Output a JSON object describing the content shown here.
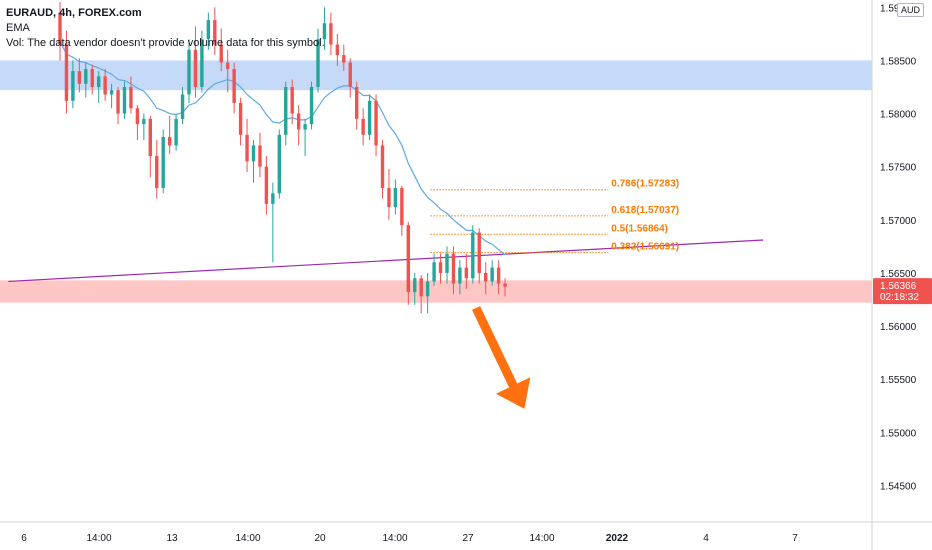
{
  "legend": {
    "title": "EURAUD, 4h, FOREX.com",
    "ema": "EMA",
    "vol": "Vol: The data vendor doesn't provide volume data for this symbol."
  },
  "currency": "AUD",
  "price_tag": {
    "price": "1.56366",
    "countdown": "02:18:32",
    "color": "#ef5350"
  },
  "colors": {
    "up": "#26a69a",
    "down": "#ef5350",
    "ema": "#5ea9e6",
    "fib": "#ff7a00",
    "trendline": "#9c27b0",
    "resistance_zone": "#bbd3f7",
    "support_zone": "#ffbcbc",
    "arrow": "#ff7010"
  },
  "chart_data": {
    "type": "candlestick",
    "y_axis": {
      "min": 1.5425,
      "max": 1.5905,
      "ticks": [
        "1.59000",
        "1.58500",
        "1.58000",
        "1.57500",
        "1.57000",
        "1.56500",
        "1.56000",
        "1.55500",
        "1.55000",
        "1.54500"
      ]
    },
    "x_axis": {
      "ticks": [
        "6",
        "14:00",
        "13",
        "14:00",
        "20",
        "14:00",
        "27",
        "14:00",
        "2022",
        "4",
        "7"
      ]
    },
    "candles": [
      [
        1.5895,
        1.5905,
        1.585,
        1.5865
      ],
      [
        1.5865,
        1.5878,
        1.58,
        1.5812
      ],
      [
        1.5812,
        1.585,
        1.5805,
        1.584
      ],
      [
        1.584,
        1.5852,
        1.582,
        1.5828
      ],
      [
        1.5828,
        1.5848,
        1.5815,
        1.5842
      ],
      [
        1.5842,
        1.5846,
        1.5818,
        1.5825
      ],
      [
        1.5825,
        1.584,
        1.581,
        1.5835
      ],
      [
        1.5835,
        1.5842,
        1.5812,
        1.5818
      ],
      [
        1.5818,
        1.5828,
        1.5805,
        1.5822
      ],
      [
        1.5822,
        1.5825,
        1.579,
        1.58
      ],
      [
        1.58,
        1.583,
        1.5795,
        1.5825
      ],
      [
        1.5825,
        1.5835,
        1.58,
        1.5805
      ],
      [
        1.5805,
        1.5808,
        1.5775,
        1.579
      ],
      [
        1.579,
        1.58,
        1.5775,
        1.5795
      ],
      [
        1.5795,
        1.5798,
        1.574,
        1.576
      ],
      [
        1.576,
        1.5775,
        1.572,
        1.573
      ],
      [
        1.573,
        1.5785,
        1.5725,
        1.5778
      ],
      [
        1.5778,
        1.5798,
        1.5762,
        1.577
      ],
      [
        1.577,
        1.58,
        1.5765,
        1.5795
      ],
      [
        1.5795,
        1.5825,
        1.579,
        1.5818
      ],
      [
        1.5818,
        1.587,
        1.581,
        1.586
      ],
      [
        1.586,
        1.5882,
        1.5815,
        1.5825
      ],
      [
        1.5825,
        1.5878,
        1.582,
        1.587
      ],
      [
        1.587,
        1.5895,
        1.586,
        1.5888
      ],
      [
        1.5888,
        1.59,
        1.5855,
        1.5865
      ],
      [
        1.5865,
        1.588,
        1.584,
        1.5848
      ],
      [
        1.5848,
        1.586,
        1.582,
        1.5842
      ],
      [
        1.5842,
        1.5848,
        1.58,
        1.581
      ],
      [
        1.581,
        1.5815,
        1.577,
        1.578
      ],
      [
        1.578,
        1.5795,
        1.5745,
        1.5755
      ],
      [
        1.5755,
        1.5775,
        1.5735,
        1.577
      ],
      [
        1.577,
        1.5782,
        1.574,
        1.575
      ],
      [
        1.575,
        1.576,
        1.5705,
        1.5715
      ],
      [
        1.5715,
        1.5735,
        1.566,
        1.5725
      ],
      [
        1.5725,
        1.5785,
        1.572,
        1.578
      ],
      [
        1.578,
        1.583,
        1.577,
        1.5825
      ],
      [
        1.5825,
        1.5832,
        1.579,
        1.58
      ],
      [
        1.58,
        1.5808,
        1.577,
        1.5785
      ],
      [
        1.5785,
        1.5795,
        1.576,
        1.579
      ],
      [
        1.579,
        1.583,
        1.5785,
        1.5825
      ],
      [
        1.5825,
        1.588,
        1.582,
        1.587
      ],
      [
        1.587,
        1.59,
        1.586,
        1.5885
      ],
      [
        1.5885,
        1.5895,
        1.5855,
        1.5865
      ],
      [
        1.5865,
        1.5875,
        1.5845,
        1.5855
      ],
      [
        1.5855,
        1.5865,
        1.584,
        1.5848
      ],
      [
        1.5848,
        1.5852,
        1.5815,
        1.5825
      ],
      [
        1.5825,
        1.583,
        1.5785,
        1.5795
      ],
      [
        1.5795,
        1.5805,
        1.577,
        1.578
      ],
      [
        1.578,
        1.5818,
        1.5775,
        1.5812
      ],
      [
        1.5812,
        1.5818,
        1.576,
        1.577
      ],
      [
        1.577,
        1.5775,
        1.572,
        1.573
      ],
      [
        1.573,
        1.5748,
        1.57,
        1.5712
      ],
      [
        1.5712,
        1.5738,
        1.5705,
        1.573
      ],
      [
        1.573,
        1.5732,
        1.5685,
        1.5695
      ],
      [
        1.5695,
        1.5698,
        1.562,
        1.5632
      ],
      [
        1.5632,
        1.565,
        1.562,
        1.5645
      ],
      [
        1.5645,
        1.5648,
        1.5612,
        1.5628
      ],
      [
        1.5628,
        1.565,
        1.5612,
        1.5642
      ],
      [
        1.5642,
        1.5668,
        1.5638,
        1.566
      ],
      [
        1.566,
        1.5668,
        1.564,
        1.565
      ],
      [
        1.565,
        1.5675,
        1.564,
        1.5668
      ],
      [
        1.5668,
        1.5675,
        1.563,
        1.564
      ],
      [
        1.564,
        1.5662,
        1.563,
        1.5655
      ],
      [
        1.5655,
        1.5668,
        1.5635,
        1.5645
      ],
      [
        1.5645,
        1.5695,
        1.564,
        1.5688
      ],
      [
        1.5688,
        1.5692,
        1.564,
        1.565
      ],
      [
        1.565,
        1.566,
        1.563,
        1.5642
      ],
      [
        1.5642,
        1.5662,
        1.5638,
        1.5655
      ],
      [
        1.5655,
        1.5662,
        1.563,
        1.564
      ],
      [
        1.564,
        1.5645,
        1.5628,
        1.5637
      ]
    ],
    "ema": [
      1.5868,
      1.5856,
      1.5853,
      1.5849,
      1.5848,
      1.5845,
      1.5843,
      1.584,
      1.5837,
      1.5832,
      1.5831,
      1.5828,
      1.5824,
      1.5821,
      1.5814,
      1.5805,
      1.5803,
      1.58,
      1.5799,
      1.5801,
      1.5808,
      1.581,
      1.5816,
      1.5823,
      1.5828,
      1.583,
      1.5832,
      1.583,
      1.5825,
      1.5818,
      1.5813,
      1.5808,
      1.5799,
      1.5792,
      1.5791,
      1.5795,
      1.5796,
      1.5794,
      1.5794,
      1.5797,
      1.5806,
      1.5815,
      1.582,
      1.5824,
      1.5826,
      1.5826,
      1.5822,
      1.5817,
      1.5817,
      1.5812,
      1.5801,
      1.5789,
      1.5781,
      1.577,
      1.5753,
      1.5741,
      1.5729,
      1.5721,
      1.5716,
      1.571,
      1.5706,
      1.57,
      1.5695,
      1.569,
      1.569,
      1.5685,
      1.568,
      1.5677,
      1.5672,
      1.5667
    ],
    "zones": [
      {
        "name": "resistance-zone",
        "top": 1.585,
        "bottom": 1.5822
      },
      {
        "name": "support-zone",
        "top": 1.5643,
        "bottom": 1.5622
      }
    ],
    "trendline": {
      "from_index": -8,
      "from_price": 1.5642,
      "to_index": 109,
      "to_price": 1.5681
    },
    "fibonacci": [
      {
        "label": "0.786(1.57283)",
        "price": 1.57283
      },
      {
        "label": "0.618(1.57037)",
        "price": 1.57037
      },
      {
        "label": "0.5(1.56864)",
        "price": 1.56864
      },
      {
        "label": "0.382(1.56691)",
        "price": 1.56691
      }
    ],
    "fib_start_index": 52,
    "fib_end_index": 85,
    "arrow": {
      "from_index": 64.5,
      "from_price": 1.5617,
      "to_index": 72,
      "to_price": 1.5522
    }
  }
}
